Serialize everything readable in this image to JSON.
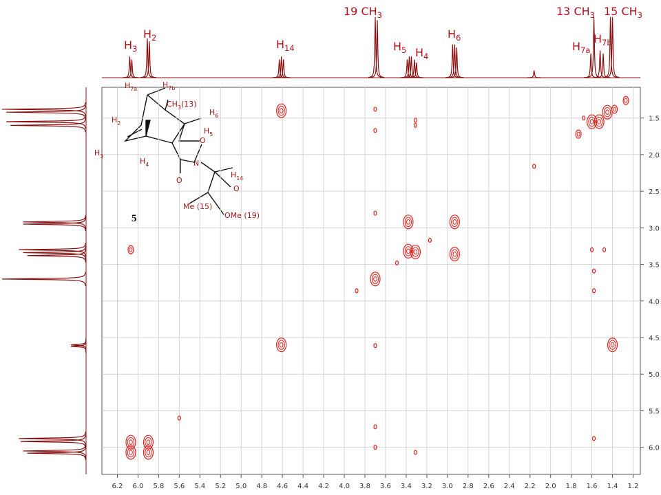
{
  "chart_data": {
    "type": "cosy",
    "xlim": [
      6.35,
      1.13
    ],
    "ylim": [
      1.08,
      6.37
    ],
    "xticks": [
      6.2,
      {
        "value": 6,
        "label": "6.0"
      },
      5.8,
      5.6,
      5.4,
      5.2,
      {
        "value": 5,
        "label": "5.0"
      },
      4.8,
      4.6,
      4.4,
      4.2,
      {
        "value": 4,
        "label": "4.0"
      },
      3.8,
      3.6,
      3.4,
      3.2,
      {
        "value": 3,
        "label": "3.0"
      },
      2.8,
      2.6,
      2.4,
      2.2,
      {
        "value": 2,
        "label": "2.0"
      },
      1.8,
      1.6,
      1.4,
      1.2
    ],
    "yticks": [
      1.5,
      {
        "value": 2,
        "label": "2.0"
      },
      2.5,
      {
        "value": 3,
        "label": "3.0"
      },
      3.5,
      {
        "value": 4,
        "label": "4.0"
      },
      4.5,
      {
        "value": 5,
        "label": "5.0"
      },
      5.5,
      {
        "value": 6,
        "label": "6.0"
      }
    ],
    "grid": true,
    "color": "#e3211c",
    "projection_color": "#8b0f0f",
    "peaks": {
      "x": [
        4.61,
        3.7,
        3.7,
        3.31,
        3.31,
        2.16,
        1.27,
        1.38,
        1.45,
        1.53,
        1.6,
        1.68,
        1.73,
        3.7,
        3.38,
        2.93,
        3.17,
        6.07,
        3.38,
        3.31,
        2.93,
        1.6,
        1.48,
        3.49,
        3.7,
        3.88,
        1.58,
        1.58,
        4.61,
        3.7,
        1.4,
        5.6,
        3.7,
        3.7,
        6.07,
        6.07,
        5.9,
        5.9,
        3.31,
        1.58
      ],
      "y": [
        1.4,
        1.38,
        1.67,
        1.53,
        1.6,
        2.16,
        1.26,
        1.38,
        1.42,
        1.55,
        1.55,
        1.5,
        1.72,
        2.8,
        2.92,
        2.92,
        3.17,
        3.3,
        3.32,
        3.33,
        3.36,
        3.3,
        3.3,
        3.48,
        3.7,
        3.86,
        3.59,
        3.86,
        4.6,
        4.61,
        4.6,
        5.6,
        5.72,
        6.0,
        5.93,
        6.07,
        5.93,
        6.07,
        6.07,
        5.88
      ],
      "size": [
        3,
        1,
        1,
        1,
        1,
        1,
        2,
        2,
        3,
        3,
        3,
        1,
        2,
        1,
        3,
        3,
        1,
        2,
        3,
        3,
        3,
        1,
        1,
        1,
        3,
        1,
        1,
        1,
        3,
        1,
        3,
        1,
        1,
        1,
        3,
        3,
        3,
        3,
        1,
        1
      ]
    },
    "top_projection": {
      "x": [
        6.08,
        6.06,
        5.91,
        5.89,
        4.63,
        4.61,
        4.59,
        3.7,
        3.68,
        3.39,
        3.37,
        3.35,
        3.32,
        3.3,
        2.95,
        2.93,
        2.91,
        2.16,
        1.61,
        1.58,
        1.52,
        1.49,
        1.42,
        1.4
      ],
      "values": [
        35,
        30,
        65,
        60,
        30,
        35,
        30,
        100,
        95,
        30,
        35,
        35,
        30,
        25,
        55,
        55,
        50,
        12,
        40,
        100,
        45,
        40,
        100,
        100
      ]
    },
    "left_projection": {
      "y": [
        1.38,
        1.42,
        1.55,
        1.6,
        2.92,
        2.95,
        3.3,
        3.34,
        3.38,
        3.7,
        4.6,
        4.62,
        5.88,
        5.92,
        6.05,
        6.08
      ],
      "values": [
        100,
        95,
        95,
        90,
        75,
        75,
        80,
        75,
        70,
        100,
        18,
        18,
        80,
        78,
        75,
        70
      ]
    },
    "peak_labels": [
      {
        "main": "H",
        "sub": "3"
      },
      {
        "main": "H",
        "sub": "2"
      },
      {
        "main": "H",
        "sub": "14"
      },
      {
        "main": "19 CH",
        "sub": "3"
      },
      {
        "main": "H",
        "sub": "5"
      },
      {
        "main": "H",
        "sub": "4"
      },
      {
        "main": "H",
        "sub": "6"
      },
      {
        "main": "13 CH",
        "sub": "3"
      },
      {
        "main": "H",
        "sub": "7a"
      },
      {
        "main": "H",
        "sub": "7b"
      },
      {
        "main": "15 CH",
        "sub": "3"
      }
    ],
    "structure_labels": [
      {
        "main": "H",
        "sub": "7a"
      },
      {
        "main": "H",
        "sub": "7b"
      },
      {
        "main": "CH",
        "sub": "3",
        "post": "(13)"
      },
      {
        "main": "H",
        "sub": "6"
      },
      {
        "main": "H",
        "sub": "2"
      },
      {
        "main": "H",
        "sub": "5"
      },
      {
        "main": "H",
        "sub": "3"
      },
      {
        "main": "H",
        "sub": "4"
      },
      {
        "main": "N"
      },
      {
        "main": "O"
      },
      {
        "main": "O"
      },
      {
        "main": "Me",
        "post": " (15)"
      },
      {
        "main": "H",
        "sub": "14"
      },
      {
        "main": "O"
      },
      {
        "main": "OMe",
        "post": " (19)"
      },
      {
        "main": "5"
      }
    ]
  }
}
